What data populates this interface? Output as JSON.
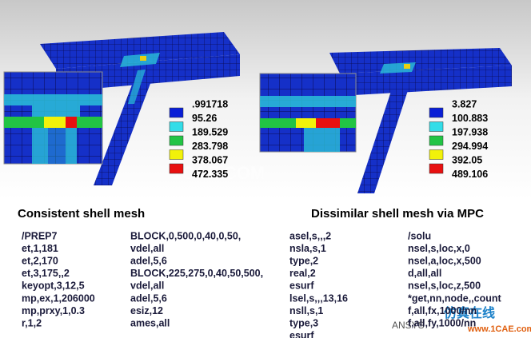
{
  "figures": [
    {
      "legend": {
        "labels": [
          ".991718",
          "95.26",
          "189.529",
          "283.798",
          "378.067",
          "472.335"
        ],
        "colors": [
          "#0a1fd6",
          "#33dde8",
          "#22c444",
          "#f2f20a",
          "#e81010"
        ]
      }
    },
    {
      "legend": {
        "labels": [
          "3.827",
          "100.883",
          "197.938",
          "294.994",
          "392.05",
          "489.106"
        ],
        "colors": [
          "#0a1fd6",
          "#33dde8",
          "#22c444",
          "#f2f20a",
          "#e81010"
        ]
      }
    }
  ],
  "watermark": "1CAE.COM",
  "sections": [
    {
      "title": "Consistent shell mesh",
      "columns": [
        [
          "/PREP7",
          "et,1,181",
          "et,2,170",
          "et,3,175,,2",
          "keyopt,3,12,5",
          "mp,ex,1,206000",
          "mp,prxy,1,0.3",
          "r,1,2"
        ],
        [
          "BLOCK,0,500,0,40,0,50,",
          "vdel,all",
          "adel,5,6",
          "BLOCK,225,275,0,40,50,500,",
          "vdel,all",
          "adel,5,6",
          "esiz,12",
          "ames,all"
        ]
      ]
    },
    {
      "title": "Dissimilar shell mesh via MPC",
      "columns": [
        [
          "asel,s,,,2",
          "nsla,s,1",
          "type,2",
          "real,2",
          "esurf",
          "lsel,s,,,13,16",
          "nsll,s,1",
          "type,3",
          "esurf"
        ],
        [
          "/solu",
          "nsel,s,loc,x,0",
          "nsel,a,loc,x,500",
          "d,all,all",
          "nsel,s,loc,z,500",
          "*get,nn,node,,count",
          "f,all,fx,1000/nn",
          "f,all,fy,1000/nn"
        ]
      ]
    }
  ],
  "footer": {
    "brand": "ANSYS",
    "site_name": "仿真在线",
    "site_url": "www.1CAE.com"
  }
}
